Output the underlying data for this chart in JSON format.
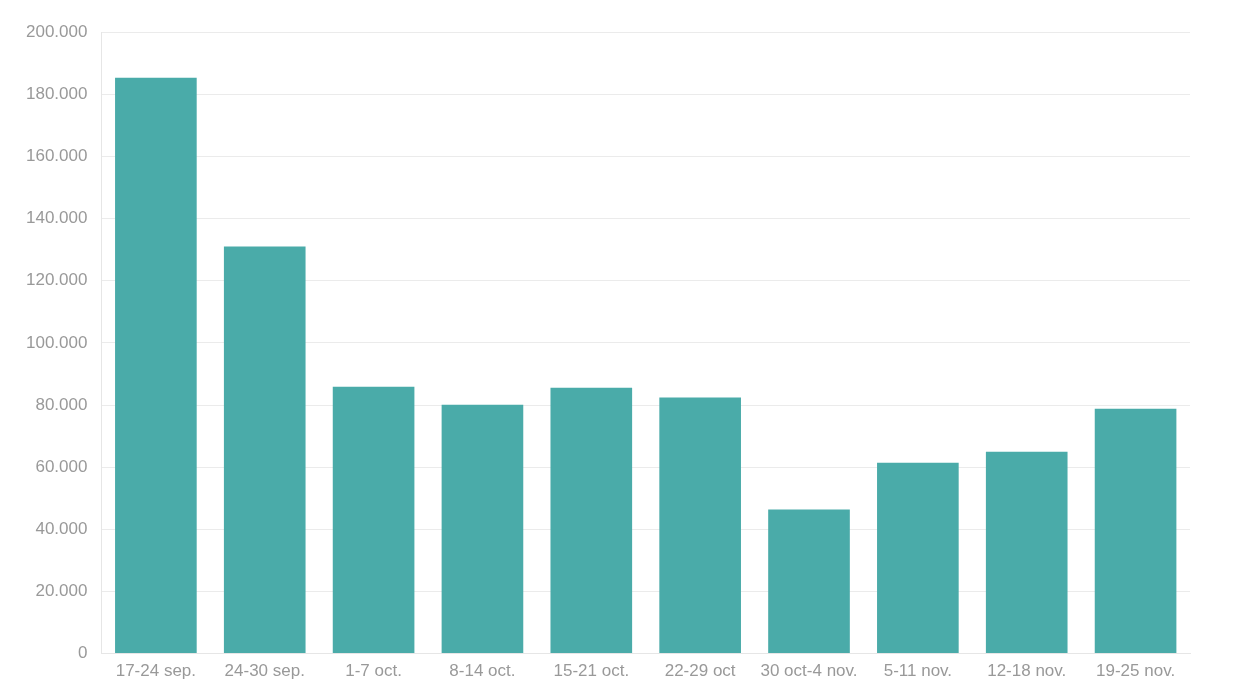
{
  "chart_data": {
    "type": "bar",
    "categories": [
      "17-24 sep.",
      "24-30 sep.",
      "1-7 oct.",
      "8-14 oct.",
      "15-21 oct.",
      "22-29 oct",
      "30 oct-4 nov.",
      "5-11 nov.",
      "12-18 nov.",
      "19-25 nov."
    ],
    "values": [
      185300,
      131000,
      85900,
      80100,
      85600,
      82400,
      46400,
      61400,
      65000,
      78800
    ],
    "color": "#4aaba9",
    "ylim": [
      0,
      200000
    ],
    "yticks": [
      0,
      {
        "value": 20000,
        "label": "20.000"
      },
      {
        "value": 40000,
        "label": "40.000"
      },
      {
        "value": 60000,
        "label": "60.000"
      },
      {
        "value": 80000,
        "label": "80.000"
      },
      {
        "value": 100000,
        "label": "100.000"
      },
      {
        "value": 120000,
        "label": "120.000"
      },
      {
        "value": 140000,
        "label": "140.000"
      },
      {
        "value": 160000,
        "label": "160.000"
      },
      {
        "value": 180000,
        "label": "180.000"
      },
      {
        "value": 200000,
        "label": "200.000"
      }
    ],
    "grid": "y"
  }
}
